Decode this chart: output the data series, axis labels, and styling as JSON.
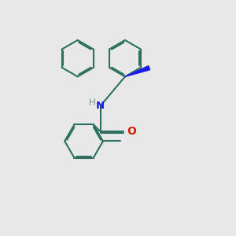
{
  "background_color": "#e8e8e8",
  "bond_color": "#2d7060",
  "N_color": "#1a1aee",
  "O_color": "#cc2200",
  "H_color": "#7a9a8a",
  "line_width": 1.5,
  "doff": 0.055,
  "figsize": [
    3.0,
    3.0
  ],
  "dpi": 100,
  "xlim": [
    0,
    10
  ],
  "ylim": [
    0,
    10
  ]
}
